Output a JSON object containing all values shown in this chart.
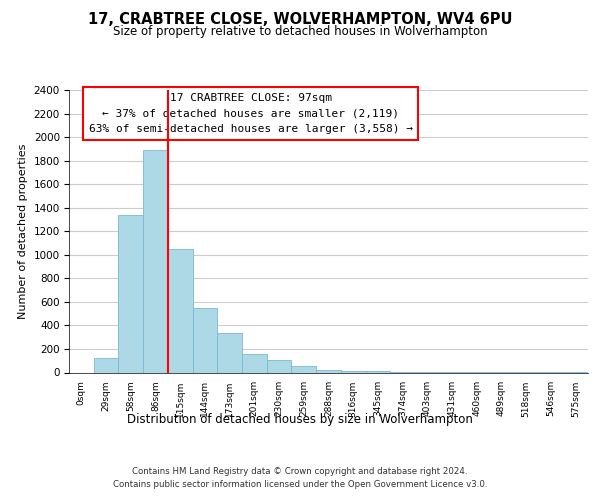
{
  "title": "17, CRABTREE CLOSE, WOLVERHAMPTON, WV4 6PU",
  "subtitle": "Size of property relative to detached houses in Wolverhampton",
  "xlabel": "Distribution of detached houses by size in Wolverhampton",
  "ylabel": "Number of detached properties",
  "bar_labels": [
    "0sqm",
    "29sqm",
    "58sqm",
    "86sqm",
    "115sqm",
    "144sqm",
    "173sqm",
    "201sqm",
    "230sqm",
    "259sqm",
    "288sqm",
    "316sqm",
    "345sqm",
    "374sqm",
    "403sqm",
    "431sqm",
    "460sqm",
    "489sqm",
    "518sqm",
    "546sqm",
    "575sqm"
  ],
  "bar_values": [
    0,
    120,
    1340,
    1890,
    1050,
    550,
    335,
    155,
    105,
    55,
    25,
    15,
    10,
    8,
    5,
    3,
    2,
    1,
    1,
    1,
    1
  ],
  "bar_color": "#add8e6",
  "bar_edge_color": "#7ab8d4",
  "vline_x_idx": 3,
  "vline_color": "red",
  "ylim": [
    0,
    2400
  ],
  "yticks": [
    0,
    200,
    400,
    600,
    800,
    1000,
    1200,
    1400,
    1600,
    1800,
    2000,
    2200,
    2400
  ],
  "annotation_title": "17 CRABTREE CLOSE: 97sqm",
  "annotation_line1": "← 37% of detached houses are smaller (2,119)",
  "annotation_line2": "63% of semi-detached houses are larger (3,558) →",
  "annotation_box_color": "white",
  "annotation_box_edge": "red",
  "footer1": "Contains HM Land Registry data © Crown copyright and database right 2024.",
  "footer2": "Contains public sector information licensed under the Open Government Licence v3.0.",
  "bg_color": "white",
  "grid_color": "#cccccc"
}
